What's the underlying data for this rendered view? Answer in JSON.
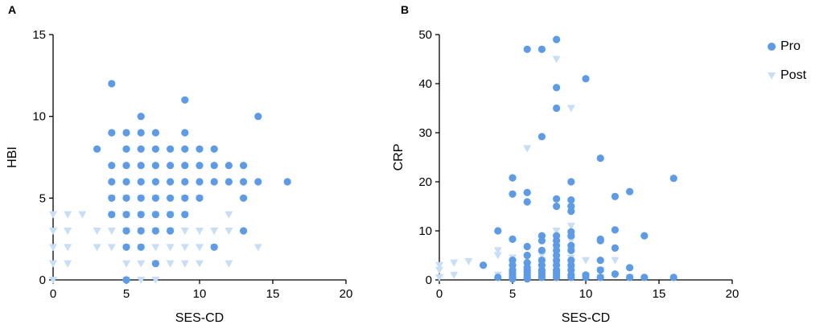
{
  "panels": [
    {
      "letter": "A"
    },
    {
      "letter": "B"
    }
  ],
  "legend": {
    "pro": {
      "label": "Pro",
      "color": "#5B9BEA",
      "marker": "circle"
    },
    "post": {
      "label": "Post",
      "color": "#C6DEF7",
      "marker": "triangle-down"
    }
  },
  "chart_data": [
    {
      "type": "scatter",
      "panel": "A",
      "title": "",
      "xlabel": "SES-CD",
      "ylabel": "HBI",
      "xlim": [
        0,
        20
      ],
      "ylim": [
        0,
        15
      ],
      "xticks": [
        0,
        5,
        10,
        15,
        20
      ],
      "yticks": [
        0,
        5,
        10,
        15
      ],
      "grid": false,
      "series": [
        {
          "name": "Post",
          "x": [
            0,
            0,
            0,
            0,
            0,
            1,
            1,
            1,
            1,
            2,
            3,
            3,
            4,
            4,
            4,
            4,
            5,
            5,
            5,
            5,
            5,
            5,
            5,
            6,
            6,
            6,
            6,
            6,
            6,
            7,
            7,
            7,
            7,
            7,
            7,
            8,
            8,
            8,
            8,
            9,
            9,
            9,
            9,
            9,
            10,
            10,
            10,
            10,
            11,
            11,
            12,
            12,
            12,
            14
          ],
          "y": [
            0,
            1,
            2,
            3,
            4,
            1,
            2,
            3,
            4,
            4,
            2,
            3,
            2,
            3,
            4,
            5,
            0,
            1,
            2,
            3,
            4,
            4,
            5,
            0,
            1,
            2,
            3,
            4,
            5,
            0,
            1,
            2,
            3,
            4,
            5,
            1,
            2,
            3,
            4,
            1,
            2,
            3,
            4,
            5,
            1,
            2,
            3,
            5,
            2,
            3,
            1,
            3,
            4,
            2
          ]
        },
        {
          "name": "Pro",
          "x": [
            3,
            4,
            4,
            4,
            4,
            4,
            4,
            5,
            5,
            5,
            5,
            5,
            5,
            5,
            5,
            5,
            6,
            6,
            6,
            6,
            6,
            6,
            6,
            6,
            6,
            7,
            7,
            7,
            7,
            7,
            7,
            7,
            7,
            8,
            8,
            8,
            8,
            8,
            8,
            9,
            9,
            9,
            9,
            9,
            9,
            9,
            10,
            10,
            10,
            10,
            11,
            11,
            11,
            11,
            12,
            12,
            13,
            13,
            13,
            13,
            14,
            14,
            16
          ],
          "y": [
            8,
            12,
            9,
            7,
            6,
            5,
            4,
            9,
            8,
            7,
            6,
            5,
            4,
            3,
            2,
            0,
            10,
            9,
            8,
            7,
            6,
            5,
            4,
            3,
            2,
            9,
            8,
            7,
            6,
            5,
            4,
            3,
            1,
            8,
            7,
            6,
            5,
            4,
            3,
            11,
            9,
            8,
            7,
            6,
            5,
            4,
            8,
            7,
            6,
            5,
            8,
            7,
            6,
            2,
            7,
            6,
            7,
            6,
            5,
            3,
            10,
            6,
            6
          ]
        }
      ]
    },
    {
      "type": "scatter",
      "panel": "B",
      "title": "",
      "xlabel": "SES-CD",
      "ylabel": "CRP",
      "xlim": [
        0,
        20
      ],
      "ylim": [
        0,
        50
      ],
      "xticks": [
        0,
        5,
        10,
        15,
        20
      ],
      "yticks": [
        0,
        10,
        20,
        30,
        40,
        50
      ],
      "grid": false,
      "series": [
        {
          "name": "Post",
          "x": [
            0,
            0,
            0,
            1,
            1,
            2,
            4,
            4,
            4,
            5,
            5,
            5,
            5,
            5,
            6,
            6,
            6,
            6,
            6,
            6,
            7,
            7,
            7,
            7,
            7,
            8,
            8,
            8,
            8,
            8,
            8,
            9,
            9,
            9,
            9,
            9,
            9,
            9,
            10,
            10,
            11,
            11,
            12,
            12,
            13
          ],
          "y": [
            0.5,
            2,
            3,
            1,
            3.5,
            3.8,
            1,
            5,
            6,
            0.5,
            1.5,
            2.5,
            3.5,
            4.5,
            0.5,
            1,
            2,
            3,
            4.5,
            26.8,
            0.5,
            1.5,
            2.5,
            4,
            5,
            0.5,
            1.5,
            3,
            4.5,
            10,
            45,
            0.5,
            2,
            4.5,
            6,
            8,
            11,
            35,
            0.8,
            4,
            0.5,
            2,
            1,
            4,
            0.5
          ]
        },
        {
          "name": "Pro",
          "x": [
            3,
            4,
            4,
            5,
            5,
            5,
            5,
            5,
            5,
            5,
            5,
            5,
            5,
            6,
            6,
            6,
            6,
            6,
            6,
            6,
            6,
            6,
            6,
            6,
            6,
            7,
            7,
            7,
            7,
            7,
            7,
            7,
            7,
            7,
            7,
            7,
            8,
            8,
            8,
            8,
            8,
            8,
            8,
            8,
            8,
            8,
            8,
            8,
            8,
            8,
            8,
            8,
            9,
            9,
            9,
            9,
            9,
            9,
            9,
            9,
            9,
            9,
            9,
            9,
            9,
            10,
            10,
            10,
            11,
            11,
            11,
            11,
            11,
            11,
            12,
            12,
            12,
            12,
            13,
            13,
            13,
            14,
            14,
            16,
            16
          ],
          "y": [
            3,
            10,
            0.5,
            20.8,
            17.5,
            8.3,
            4,
            3,
            2,
            1.5,
            1,
            0.5,
            0.2,
            47,
            17.8,
            15.9,
            6.8,
            5,
            3.5,
            2.5,
            2,
            1.5,
            1,
            0.5,
            0.2,
            47,
            29.2,
            9,
            8,
            6,
            4,
            3,
            2,
            1.5,
            1,
            0.5,
            49,
            39.2,
            35,
            16.5,
            15,
            9,
            8,
            7,
            6,
            5,
            4,
            3,
            2,
            1.5,
            1,
            0.5,
            20,
            16.3,
            15,
            14,
            9.8,
            9,
            7,
            6,
            4,
            3,
            2,
            1,
            0.5,
            41,
            1,
            0.5,
            24.8,
            8.3,
            8,
            4,
            2,
            0.5,
            17,
            10.2,
            6.5,
            1.2,
            18,
            2.5,
            0.5,
            9,
            0.5,
            20.7,
            0.5
          ]
        }
      ]
    }
  ]
}
